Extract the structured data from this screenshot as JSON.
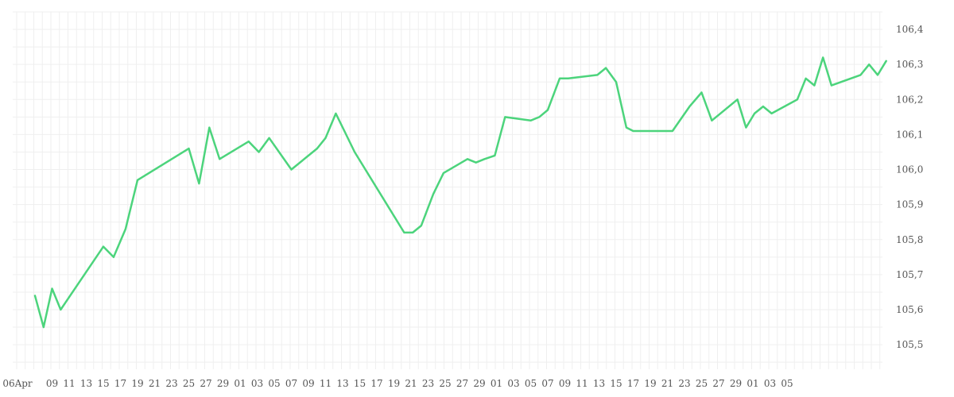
{
  "chart_data": {
    "type": "line",
    "title": "",
    "xlabel": "",
    "ylabel": "",
    "grid": true,
    "ylim": [
      105.43,
      106.45
    ],
    "y_ticks": [
      "105,5",
      "105,6",
      "105,7",
      "105,8",
      "105,9",
      "106,0",
      "106,1",
      "106,2",
      "106,3",
      "106,4"
    ],
    "y_tick_values": [
      105.5,
      105.6,
      105.7,
      105.8,
      105.9,
      106.0,
      106.1,
      106.2,
      106.3,
      106.4
    ],
    "x_ticks": [
      "06Apr",
      "09",
      "11",
      "13",
      "15",
      "17",
      "19",
      "21",
      "23",
      "25",
      "27",
      "29",
      "01",
      "03",
      "05",
      "07",
      "09",
      "11",
      "13",
      "15",
      "17",
      "19",
      "21",
      "23",
      "25",
      "27",
      "29",
      "01",
      "03",
      "05",
      "07",
      "09",
      "11",
      "13",
      "15",
      "17",
      "19",
      "21",
      "23",
      "25",
      "27",
      "29",
      "01",
      "03",
      "05"
    ],
    "series": [
      {
        "color": "#4cd47c",
        "values": [
          105.64,
          105.55,
          105.66,
          105.6,
          105.78,
          105.75,
          105.83,
          105.97,
          106.06,
          105.96,
          106.12,
          106.03,
          106.08,
          106.05,
          106.09,
          106.0,
          106.06,
          106.09,
          106.16,
          106.11,
          106.05,
          105.82,
          105.82,
          105.84,
          105.93,
          105.99,
          106.03,
          106.02,
          106.03,
          106.04,
          106.15,
          106.14,
          106.15,
          106.17,
          106.26,
          106.26,
          106.27,
          106.29,
          106.25,
          106.12,
          106.11,
          106.11,
          106.18,
          106.22,
          106.14,
          106.2,
          106.12,
          106.16,
          106.18,
          106.16,
          106.2,
          106.26,
          106.24,
          106.32,
          106.24,
          106.27,
          106.3,
          106.27,
          106.31
        ],
        "x_index": [
          0,
          0.5,
          1,
          1.5,
          4,
          4.6,
          5.3,
          6,
          9,
          9.6,
          10.2,
          10.8,
          12.5,
          13.1,
          13.7,
          15,
          16.5,
          17,
          17.6,
          18.1,
          18.7,
          21.6,
          22.1,
          22.6,
          23.3,
          23.9,
          25.3,
          25.8,
          26.3,
          26.9,
          27.5,
          29,
          29.5,
          30,
          30.7,
          31.2,
          32.9,
          33.4,
          34,
          34.6,
          35,
          37.3,
          38.3,
          39,
          39.6,
          41.1,
          41.6,
          42.1,
          42.6,
          43.1,
          44.6,
          45.1,
          45.6,
          46.1,
          46.6,
          48.3,
          48.8,
          49.3,
          49.8
        ]
      }
    ]
  }
}
